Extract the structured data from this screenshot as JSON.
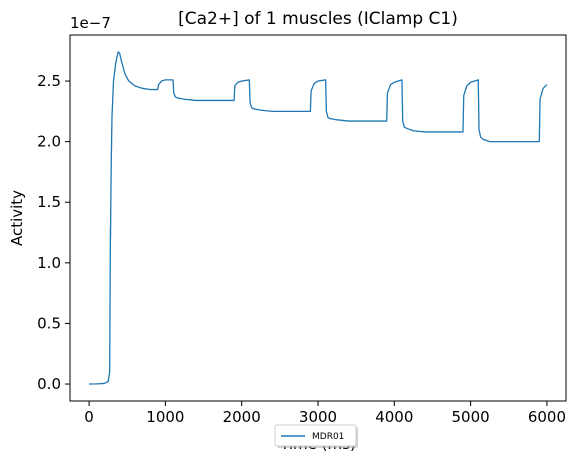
{
  "chart_data": {
    "type": "line",
    "title": "[Ca2+] of 1 muscles (IClamp C1)",
    "xlabel": "Time (ms)",
    "ylabel": "Activity",
    "y_offset_label": "1e−7",
    "xlim": [
      -250,
      6250
    ],
    "ylim": [
      -0.14,
      2.88
    ],
    "x_ticks": [
      0,
      1000,
      2000,
      3000,
      4000,
      5000,
      6000
    ],
    "x_tick_labels": [
      "0",
      "1000",
      "2000",
      "3000",
      "4000",
      "5000",
      "6000"
    ],
    "y_ticks": [
      0.0,
      0.5,
      1.0,
      1.5,
      2.0,
      2.5
    ],
    "y_tick_labels": [
      "0.0",
      "0.5",
      "1.0",
      "1.5",
      "2.0",
      "2.5"
    ],
    "grid": false,
    "legend_position": "bottom-center",
    "series": [
      {
        "name": "MDR01",
        "color": "#1f77b4",
        "x": [
          0,
          100,
          200,
          250,
          270,
          280,
          281,
          285,
          290,
          300,
          320,
          350,
          380,
          400,
          430,
          470,
          520,
          600,
          700,
          800,
          900,
          910,
          950,
          1000,
          1100,
          1110,
          1130,
          1160,
          1250,
          1400,
          1600,
          1800,
          1900,
          1910,
          1950,
          2000,
          2100,
          2110,
          2130,
          2160,
          2250,
          2400,
          2600,
          2800,
          2900,
          2910,
          2950,
          3000,
          3100,
          3110,
          3130,
          3160,
          3250,
          3400,
          3600,
          3800,
          3900,
          3910,
          3950,
          4000,
          4100,
          4110,
          4130,
          4160,
          4250,
          4400,
          4600,
          4800,
          4900,
          4910,
          4950,
          5000,
          5100,
          5110,
          5130,
          5160,
          5250,
          5400,
          5600,
          5800,
          5900,
          5910,
          5950,
          6000
        ],
        "values": [
          0.0,
          0.001,
          0.005,
          0.02,
          0.1,
          1.3,
          1.2,
          1.5,
          1.8,
          2.2,
          2.5,
          2.65,
          2.74,
          2.73,
          2.65,
          2.56,
          2.5,
          2.46,
          2.44,
          2.43,
          2.43,
          2.47,
          2.5,
          2.51,
          2.51,
          2.4,
          2.37,
          2.36,
          2.35,
          2.34,
          2.34,
          2.34,
          2.34,
          2.46,
          2.49,
          2.5,
          2.51,
          2.32,
          2.28,
          2.27,
          2.26,
          2.25,
          2.25,
          2.25,
          2.25,
          2.42,
          2.48,
          2.5,
          2.51,
          2.25,
          2.2,
          2.19,
          2.18,
          2.17,
          2.17,
          2.17,
          2.17,
          2.4,
          2.47,
          2.49,
          2.51,
          2.17,
          2.12,
          2.11,
          2.09,
          2.08,
          2.08,
          2.08,
          2.08,
          2.38,
          2.46,
          2.49,
          2.51,
          2.1,
          2.04,
          2.02,
          2.0,
          2.0,
          2.0,
          2.0,
          2.0,
          2.35,
          2.44,
          2.47
        ]
      }
    ]
  }
}
